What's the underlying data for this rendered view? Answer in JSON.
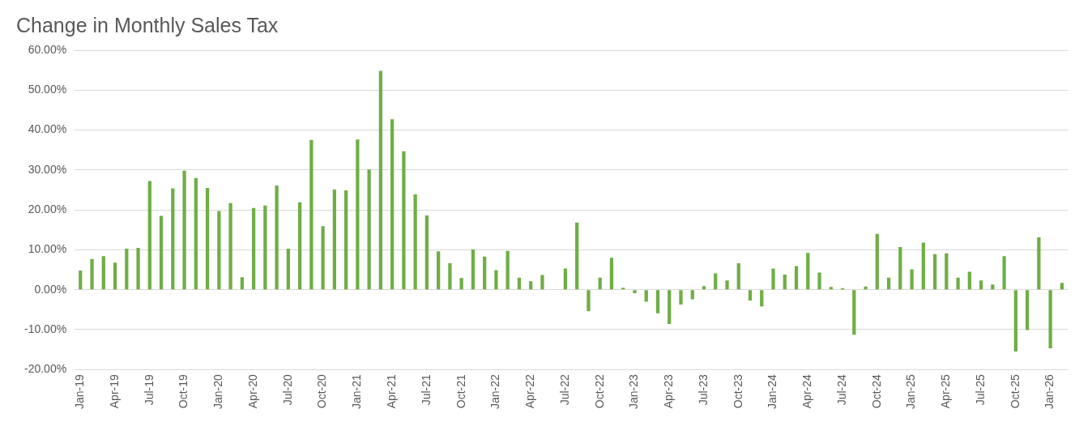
{
  "chart_data": {
    "type": "bar",
    "title": "Change in Monthly Sales Tax",
    "categories": [
      "Jan-19",
      null,
      null,
      "Apr-19",
      null,
      null,
      "Jul-19",
      null,
      null,
      "Oct-19",
      null,
      null,
      "Jan-20",
      null,
      null,
      "Apr-20",
      null,
      null,
      "Jul-20",
      null,
      null,
      "Oct-20",
      null,
      null,
      "Jan-21",
      null,
      null,
      "Apr-21",
      null,
      null,
      "Jul-21",
      null,
      null,
      "Oct-21",
      null,
      null,
      "Jan-22",
      null,
      null,
      "Apr-22",
      null,
      null,
      "Jul-22",
      null,
      null,
      "Oct-22",
      null,
      null,
      "Jan-23",
      null,
      null,
      "Apr-23",
      null,
      null,
      "Jul-23",
      null,
      null,
      "Oct-23",
      null,
      null,
      "Jan-24",
      null,
      null,
      "Apr-24",
      null,
      null,
      "Jul-24",
      null,
      null,
      "Oct-24",
      null,
      null,
      "Jan-25",
      null,
      null,
      "Apr-25",
      null,
      null,
      "Jul-25",
      null,
      null,
      "Oct-25",
      null,
      null,
      "Jan-26",
      null
    ],
    "values": [
      4.8,
      7.7,
      8.4,
      6.8,
      10.3,
      10.5,
      27.2,
      18.5,
      25.4,
      29.8,
      28.0,
      25.5,
      19.7,
      21.7,
      3.1,
      20.5,
      21.1,
      26.1,
      10.3,
      21.9,
      37.5,
      15.9,
      25.1,
      24.9,
      37.6,
      30.1,
      54.8,
      42.7,
      34.7,
      23.9,
      18.6,
      9.6,
      6.6,
      2.9,
      10.1,
      8.3,
      4.9,
      9.7,
      3.0,
      2.1,
      3.7,
      0,
      5.3,
      16.8,
      -5.4,
      3.0,
      8.0,
      0.5,
      -0.9,
      -3.0,
      -5.9,
      -8.6,
      -3.7,
      -2.4,
      0.9,
      4.1,
      2.3,
      6.6,
      -2.7,
      -4.2,
      5.3,
      3.8,
      5.9,
      9.2,
      4.3,
      0.7,
      0.4,
      -11.3,
      0.8,
      14.0,
      3.0,
      10.7,
      5.1,
      11.8,
      8.9,
      9.1,
      3.0,
      4.5,
      2.3,
      1.3,
      8.4,
      -15.5,
      -10.1,
      13.1,
      -14.7,
      1.7
    ],
    "color": "#70ad47",
    "ylim": [
      -20,
      60
    ],
    "yticks": [
      {
        "value": -20,
        "label": "-20.00%"
      },
      {
        "value": -10,
        "label": "-10.00%"
      },
      {
        "value": 0,
        "label": "0.00%"
      },
      {
        "value": 10,
        "label": "10.00%"
      },
      {
        "value": 20,
        "label": "20.00%"
      },
      {
        "value": 30,
        "label": "30.00%"
      },
      {
        "value": 40,
        "label": "40.00%"
      },
      {
        "value": 50,
        "label": "50.00%"
      },
      {
        "value": 60,
        "label": "60.00%"
      }
    ],
    "grid": "y"
  }
}
